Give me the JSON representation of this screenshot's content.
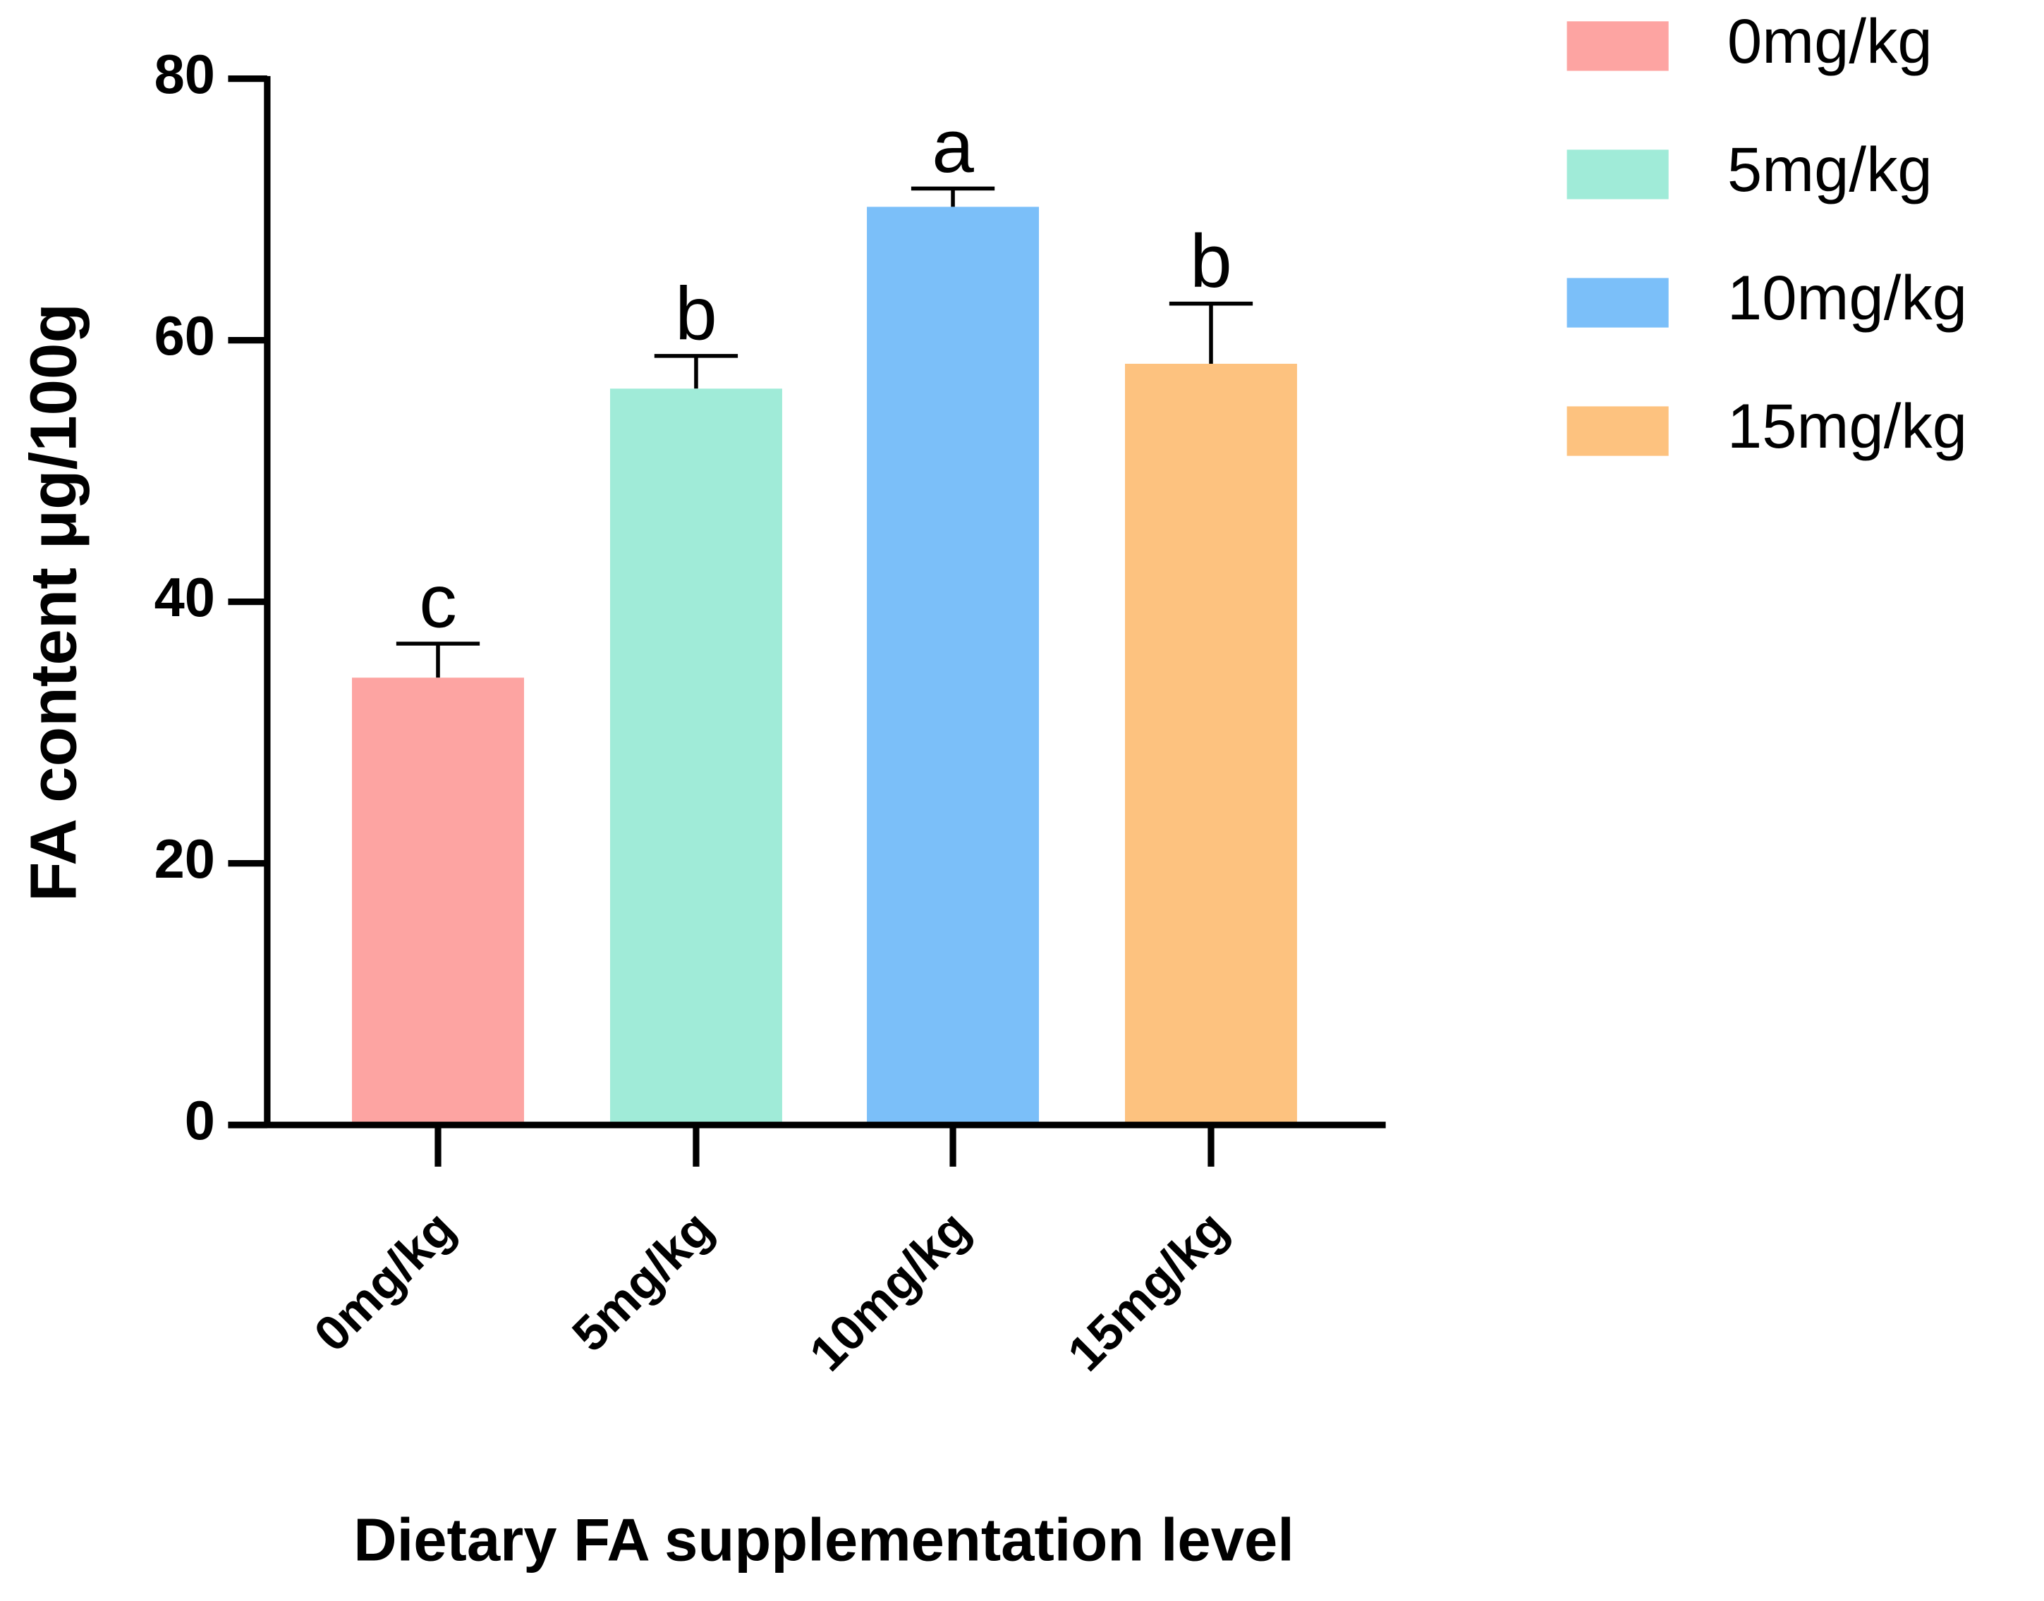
{
  "chart_data": {
    "type": "bar",
    "categories": [
      "0mg/kg",
      "5mg/kg",
      "10mg/kg",
      "15mg/kg"
    ],
    "values": [
      34.2,
      56.3,
      70.2,
      58.2
    ],
    "errors": [
      2.6,
      2.5,
      1.4,
      4.6
    ],
    "significance_labels": [
      "c",
      "b",
      "a",
      "b"
    ],
    "colors": [
      "#fda4a2",
      "#a0ebd8",
      "#7bbff9",
      "#fdc27f"
    ],
    "x_label": "Dietary FA supplementation level",
    "y_label": "FA content μg/100g",
    "ylim": [
      0,
      80
    ],
    "yticks": [
      0,
      20,
      40,
      60,
      80
    ],
    "legend": "upper right"
  }
}
